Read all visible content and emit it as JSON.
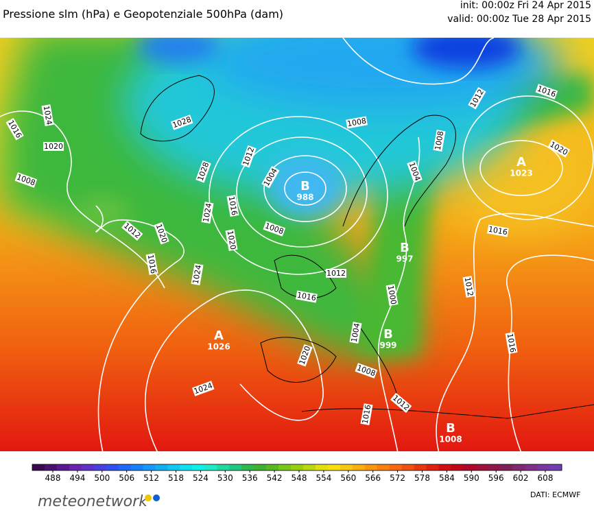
{
  "header": {
    "title": "Pressione slm (hPa) e Geopotenziale 500hPa (dam)",
    "init": "init: 00:00z Fri 24 Apr 2015",
    "valid": "valid: 00:00z Tue 28 Apr 2015"
  },
  "map": {
    "centers": [
      {
        "letter": "B",
        "value": 988
      },
      {
        "letter": "A",
        "value": 1023
      },
      {
        "letter": "A",
        "value": 1026
      },
      {
        "letter": "B",
        "value": 997
      },
      {
        "letter": "B",
        "value": 999
      },
      {
        "letter": "B",
        "value": 1008
      }
    ],
    "isobar_labels": [
      1016,
      1024,
      1020,
      1008,
      1012,
      1020,
      1016,
      1024,
      1028,
      1024,
      1028,
      1016,
      1020,
      1012,
      1004,
      1008,
      1008,
      1012,
      1016,
      1008,
      1004,
      1012,
      1016,
      1020,
      1016,
      1012,
      1016,
      1000,
      1004,
      1008,
      1020,
      1024,
      1012,
      1016
    ]
  },
  "colorbar": {
    "ticks": [
      488,
      494,
      500,
      506,
      512,
      518,
      524,
      530,
      536,
      542,
      548,
      554,
      560,
      566,
      572,
      578,
      584,
      590,
      596,
      602,
      608
    ],
    "colors": [
      "#3a0a50",
      "#4a1070",
      "#5a1890",
      "#6a22b0",
      "#6030c8",
      "#4a40e0",
      "#3050f0",
      "#2068f8",
      "#1880f8",
      "#1898f8",
      "#10b0f0",
      "#10c8f0",
      "#10e0f0",
      "#10f0e8",
      "#20e8c8",
      "#20d8a0",
      "#20c880",
      "#30b850",
      "#40b030",
      "#58b820",
      "#78c818",
      "#98d010",
      "#b8d810",
      "#e0e010",
      "#f8e010",
      "#f8c810",
      "#f8b010",
      "#f89810",
      "#f88010",
      "#f86810",
      "#f05010",
      "#e83810",
      "#e02010",
      "#d01010",
      "#c00818",
      "#b00828",
      "#a01038",
      "#901848",
      "#802058",
      "#802870",
      "#803088",
      "#7838a0",
      "#7040b0"
    ]
  },
  "footer": {
    "logo": "meteonetwork",
    "source": "DATI: ECMWF"
  }
}
